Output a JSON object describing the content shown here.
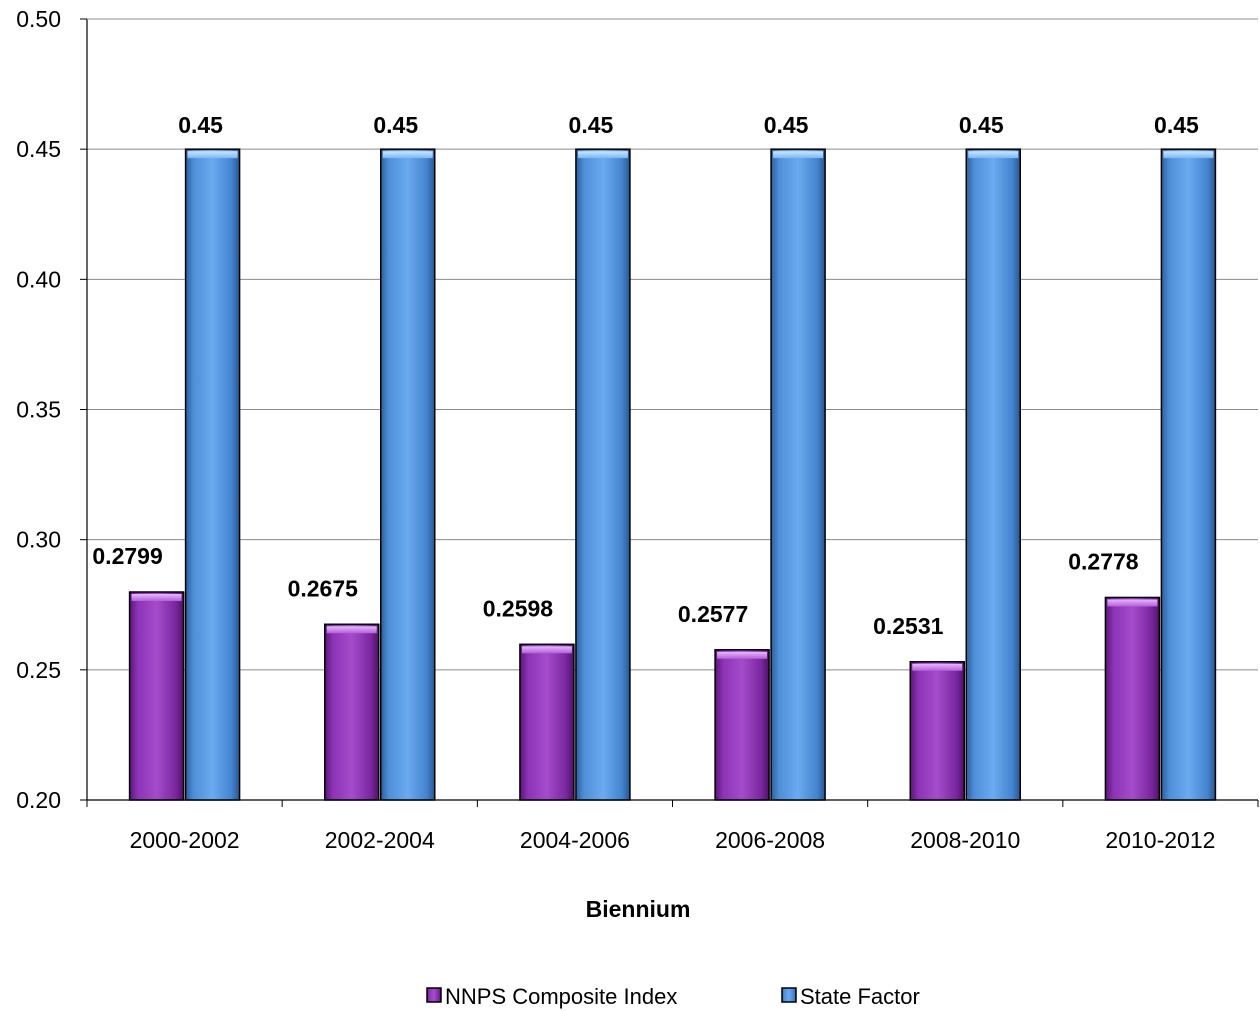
{
  "chart_data": {
    "type": "bar",
    "title": "",
    "xlabel": "Biennium",
    "ylabel": "",
    "ylim": [
      0.2,
      0.5
    ],
    "yticks": [
      "0.20",
      "0.25",
      "0.30",
      "0.35",
      "0.40",
      "0.45",
      "0.50"
    ],
    "categories": [
      "2000-2002",
      "2002-2004",
      "2004-2006",
      "2006-2008",
      "2008-2010",
      "2010-2012"
    ],
    "series": [
      {
        "name": "NNPS Composite Index",
        "color": "#8a2fb0",
        "values": [
          0.2799,
          0.2675,
          0.2598,
          0.2577,
          0.2531,
          0.2778
        ],
        "labels": [
          "0.2799",
          "0.2675",
          "0.2598",
          "0.2577",
          "0.2531",
          "0.2778"
        ]
      },
      {
        "name": "State Factor",
        "color": "#4a90e2",
        "values": [
          0.45,
          0.45,
          0.45,
          0.45,
          0.45,
          0.45
        ],
        "labels": [
          "0.45",
          "0.45",
          "0.45",
          "0.45",
          "0.45",
          "0.45"
        ]
      }
    ],
    "grid": true,
    "legend_position": "bottom"
  }
}
